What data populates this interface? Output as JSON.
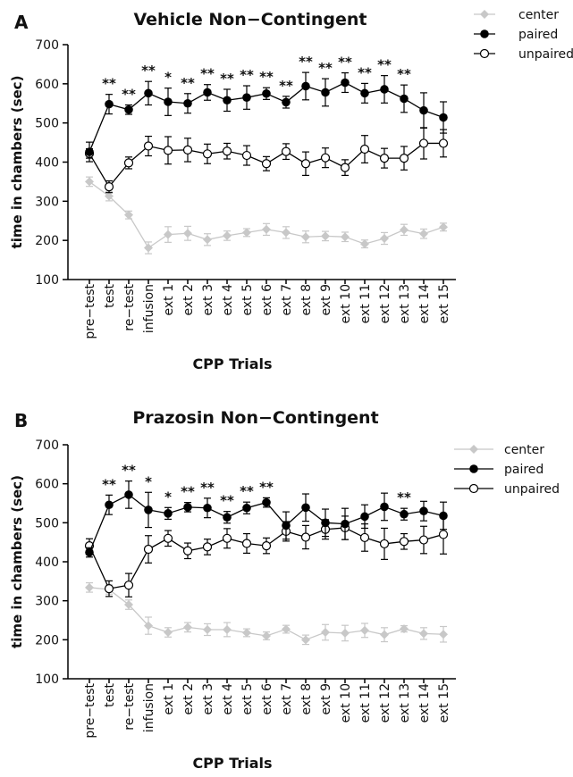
{
  "colors": {
    "center": "#c8c8c8",
    "paired": "#000000",
    "unpaired": "#000000"
  },
  "chart_data": [
    {
      "type": "line",
      "panel_label": "A",
      "title": "Vehicle Non−Contingent",
      "xlabel": "CPP Trials",
      "ylabel": "time in chambers (sec)",
      "ylim": [
        100,
        700
      ],
      "yticks": [
        100,
        200,
        300,
        400,
        500,
        600,
        700
      ],
      "categories": [
        "pre−test",
        "test",
        "re−test",
        "infusion",
        "ext 1",
        "ext 2",
        "ext 3",
        "ext 4",
        "ext 5",
        "ext 6",
        "ext 7",
        "ext 8",
        "ext 9",
        "ext 10",
        "ext 11",
        "ext 12",
        "ext 13",
        "ext 14",
        "ext 15"
      ],
      "legend": {
        "position": "top-right",
        "entries": [
          "center",
          "paired",
          "unpaired"
        ]
      },
      "series": [
        {
          "name": "center",
          "marker": "diamond",
          "color": "#c8c8c8",
          "values": [
            350,
            313,
            265,
            181,
            215,
            218,
            202,
            212,
            220,
            228,
            220,
            209,
            211,
            209,
            191,
            205,
            227,
            217,
            234
          ],
          "errors": [
            12,
            12,
            10,
            15,
            20,
            18,
            15,
            12,
            10,
            15,
            15,
            15,
            12,
            12,
            10,
            15,
            14,
            12,
            10
          ]
        },
        {
          "name": "paired",
          "marker": "filled-circle",
          "color": "#000000",
          "values": [
            426,
            548,
            534,
            576,
            554,
            550,
            578,
            558,
            565,
            575,
            553,
            594,
            578,
            603,
            576,
            586,
            562,
            532,
            514
          ],
          "errors": [
            25,
            25,
            12,
            30,
            35,
            25,
            20,
            28,
            30,
            15,
            15,
            35,
            35,
            25,
            25,
            35,
            35,
            45,
            40
          ]
        },
        {
          "name": "unpaired",
          "marker": "open-circle",
          "color": "#000000",
          "values": [
            422,
            337,
            398,
            441,
            430,
            431,
            421,
            428,
            417,
            396,
            427,
            396,
            411,
            386,
            433,
            410,
            410,
            448,
            448
          ],
          "errors": [
            12,
            15,
            15,
            25,
            35,
            30,
            25,
            20,
            25,
            18,
            20,
            30,
            25,
            20,
            35,
            25,
            30,
            40,
            35
          ]
        }
      ],
      "annotations": [
        "",
        "**",
        "**",
        "**",
        "*",
        "**",
        "**",
        "**",
        "**",
        "**",
        "**",
        "**",
        "**",
        "**",
        "**",
        "**",
        "**",
        "",
        ""
      ]
    },
    {
      "type": "line",
      "panel_label": "B",
      "title": "Prazosin Non−Contingent",
      "xlabel": "CPP Trials",
      "ylabel": "time in chambers (sec)",
      "ylim": [
        100,
        700
      ],
      "yticks": [
        100,
        200,
        300,
        400,
        500,
        600,
        700
      ],
      "categories": [
        "pre−test",
        "test",
        "re−test",
        "infusion",
        "ext 1",
        "ext 2",
        "ext 3",
        "ext 4",
        "ext 5",
        "ext 6",
        "ext 7",
        "ext 8",
        "ext 9",
        "ext 10",
        "ext 11",
        "ext 12",
        "ext 13",
        "ext 14",
        "ext 15"
      ],
      "legend": {
        "position": "top-right",
        "entries": [
          "center",
          "paired",
          "unpaired"
        ]
      },
      "series": [
        {
          "name": "center",
          "marker": "diamond",
          "color": "#c8c8c8",
          "values": [
            334,
            329,
            290,
            236,
            219,
            232,
            226,
            226,
            218,
            210,
            227,
            200,
            219,
            217,
            224,
            213,
            228,
            216,
            214
          ],
          "errors": [
            12,
            12,
            12,
            22,
            12,
            12,
            15,
            18,
            10,
            10,
            10,
            12,
            20,
            20,
            18,
            18,
            8,
            15,
            20
          ]
        },
        {
          "name": "paired",
          "marker": "filled-circle",
          "color": "#000000",
          "values": [
            424,
            546,
            572,
            533,
            524,
            540,
            538,
            514,
            538,
            552,
            493,
            539,
            500,
            497,
            516,
            541,
            522,
            530,
            518
          ],
          "errors": [
            12,
            25,
            35,
            45,
            15,
            12,
            25,
            15,
            15,
            12,
            35,
            35,
            35,
            40,
            30,
            35,
            15,
            25,
            35
          ]
        },
        {
          "name": "unpaired",
          "marker": "open-circle",
          "color": "#000000",
          "values": [
            441,
            331,
            340,
            432,
            460,
            428,
            438,
            460,
            447,
            441,
            478,
            463,
            483,
            487,
            462,
            446,
            452,
            456,
            470
          ],
          "errors": [
            18,
            20,
            30,
            35,
            20,
            20,
            20,
            25,
            25,
            20,
            25,
            30,
            25,
            30,
            35,
            40,
            20,
            35,
            50
          ]
        }
      ],
      "annotations": [
        "",
        "**",
        "**",
        "*",
        "*",
        "**",
        "**",
        "**",
        "**",
        "**",
        "",
        "",
        "",
        "",
        "",
        "",
        "**",
        "",
        ""
      ]
    }
  ]
}
